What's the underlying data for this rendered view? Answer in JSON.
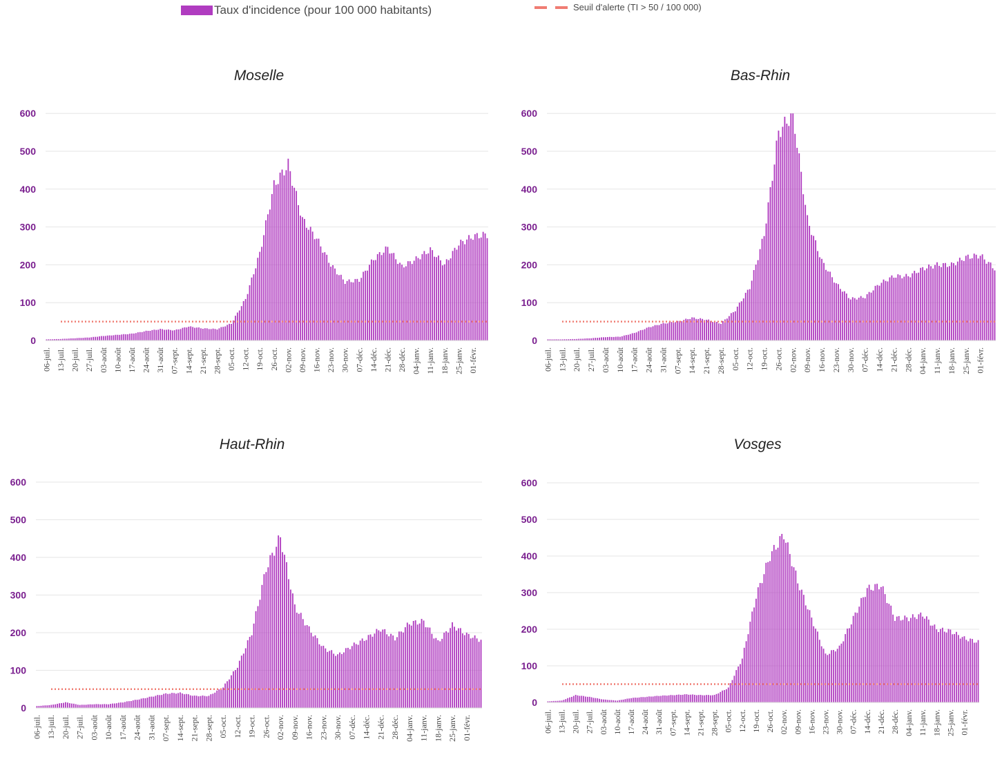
{
  "colors": {
    "bar": "#b03cc0",
    "threshold": "#f07c72",
    "axis_label": "#7a1f8f",
    "grid": "#e6e6e6"
  },
  "legend": {
    "bars_label": "Taux d'incidence (pour 100 000 habitants)",
    "threshold_label": "Seuil d'alerte (TI > 50 / 100 000)"
  },
  "chart_data": [
    {
      "type": "bar",
      "title": "Moselle",
      "xlabel": "",
      "ylabel": "",
      "ylim": [
        0,
        600
      ],
      "y_ticks": [
        "0",
        "100",
        "200",
        "300",
        "400",
        "500",
        "600"
      ],
      "x_ticks": [
        "06-juil.",
        "13-juil.",
        "20-juil.",
        "27-juil.",
        "03-août",
        "10-août",
        "17-août",
        "24-août",
        "31-août",
        "07-sept.",
        "14-sept.",
        "21-sept.",
        "28-sept.",
        "05-oct.",
        "12-oct.",
        "19-oct.",
        "26-oct.",
        "02-nov.",
        "09-nov.",
        "16-nov.",
        "23-nov.",
        "30-nov.",
        "07-déc.",
        "14-déc.",
        "21-déc.",
        "28-déc.",
        "04-janv.",
        "11-janv.",
        "18-janv.",
        "25-janv.",
        "01-févr."
      ],
      "threshold": 50,
      "weekly_anchor_values": [
        3,
        4,
        6,
        8,
        12,
        15,
        18,
        25,
        30,
        27,
        37,
        32,
        30,
        45,
        110,
        230,
        410,
        465,
        320,
        270,
        200,
        155,
        160,
        215,
        245,
        195,
        215,
        240,
        200,
        255,
        275,
        280
      ]
    },
    {
      "type": "bar",
      "title": "Bas-Rhin",
      "xlabel": "",
      "ylabel": "",
      "ylim": [
        0,
        600
      ],
      "y_ticks": [
        "0",
        "100",
        "200",
        "300",
        "400",
        "500",
        "600"
      ],
      "x_ticks": [
        "06-juil.",
        "13-juil.",
        "20-juil.",
        "27-juil.",
        "03-août",
        "10-août",
        "17-août",
        "24-août",
        "31-août",
        "07-sept.",
        "14-sept.",
        "21-sept.",
        "28-sept.",
        "05-oct.",
        "12-oct.",
        "19-oct.",
        "26-oct.",
        "02-nov.",
        "09-nov.",
        "16-nov.",
        "23-nov.",
        "30-nov.",
        "07-déc.",
        "14-déc.",
        "21-déc.",
        "28-déc.",
        "04-janv.",
        "11-janv.",
        "18-janv.",
        "25-janv.",
        "01-févr."
      ],
      "threshold": 50,
      "weekly_anchor_values": [
        3,
        3,
        4,
        6,
        9,
        10,
        20,
        35,
        45,
        50,
        60,
        55,
        45,
        80,
        140,
        280,
        550,
        600,
        320,
        210,
        150,
        110,
        115,
        150,
        170,
        170,
        190,
        200,
        200,
        220,
        225,
        190
      ]
    },
    {
      "type": "bar",
      "title": "Haut-Rhin",
      "xlabel": "",
      "ylabel": "",
      "ylim": [
        0,
        600
      ],
      "y_ticks": [
        "0",
        "100",
        "200",
        "300",
        "400",
        "500",
        "600"
      ],
      "x_ticks": [
        "06-juil.",
        "13-juil.",
        "20-juil.",
        "27-juil.",
        "03-août",
        "10-août",
        "17-août",
        "24-août",
        "31-août",
        "07-sept.",
        "14-sept.",
        "21-sept.",
        "28-sept.",
        "05-oct.",
        "12-oct.",
        "19-oct.",
        "26-oct.",
        "02-nov.",
        "09-nov.",
        "16-nov.",
        "23-nov.",
        "30-nov.",
        "07-déc.",
        "14-déc.",
        "21-déc.",
        "28-déc.",
        "04-janv.",
        "11-janv.",
        "18-janv.",
        "25-janv.",
        "01-févr."
      ],
      "threshold": 50,
      "weekly_anchor_values": [
        5,
        8,
        15,
        8,
        10,
        10,
        15,
        22,
        30,
        38,
        40,
        32,
        32,
        55,
        110,
        200,
        370,
        455,
        270,
        210,
        160,
        140,
        165,
        185,
        210,
        185,
        225,
        230,
        175,
        220,
        195,
        180
      ]
    },
    {
      "type": "bar",
      "title": "Vosges",
      "xlabel": "",
      "ylabel": "",
      "ylim": [
        0,
        600
      ],
      "y_ticks": [
        "0",
        "100",
        "200",
        "300",
        "400",
        "500",
        "600"
      ],
      "x_ticks": [
        "06-juil.",
        "13-juil.",
        "20-juil.",
        "27-juil.",
        "03-août",
        "10-août",
        "17-août",
        "24-août",
        "31-août",
        "07-sept.",
        "14-sept.",
        "21-sept.",
        "28-sept.",
        "05-oct.",
        "12-oct.",
        "19-oct.",
        "26-oct.",
        "02-nov.",
        "09-nov.",
        "16-nov.",
        "23-nov.",
        "30-nov.",
        "07-déc.",
        "14-déc.",
        "21-déc.",
        "28-déc.",
        "04-janv.",
        "11-janv.",
        "18-janv.",
        "25-janv.",
        "01-févr."
      ],
      "threshold": 50,
      "weekly_anchor_values": [
        3,
        5,
        20,
        15,
        8,
        5,
        12,
        15,
        18,
        20,
        22,
        20,
        20,
        40,
        120,
        290,
        400,
        460,
        330,
        230,
        130,
        150,
        230,
        310,
        320,
        230,
        230,
        240,
        200,
        195,
        175,
        165
      ]
    }
  ]
}
